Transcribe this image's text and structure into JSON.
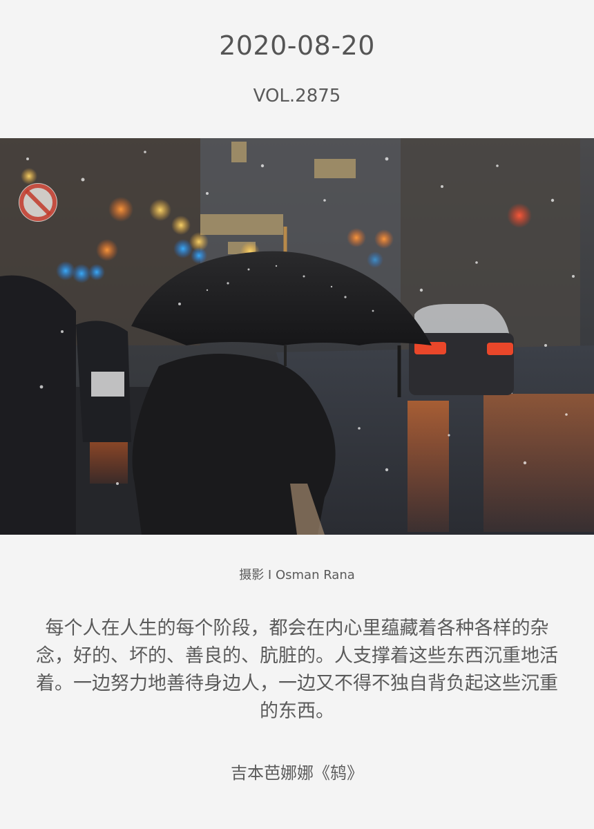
{
  "header": {
    "date": "2020-08-20",
    "volume": "VOL.2875"
  },
  "photo": {
    "credit": "摄影 I Osman Rana"
  },
  "quote": {
    "text": "每个人在人生的每个阶段，都会在内心里蕴藏着各种各样的杂念，好的、坏的、善良的、肮脏的。人支撑着这些东西沉重地活着。一边努力地善待身边人，一边又不得不独自背负起这些沉重的东西。",
    "source": "吉本芭娜娜《鸫》"
  },
  "colors": {
    "background": "#f4f4f4",
    "text": "#555555"
  }
}
